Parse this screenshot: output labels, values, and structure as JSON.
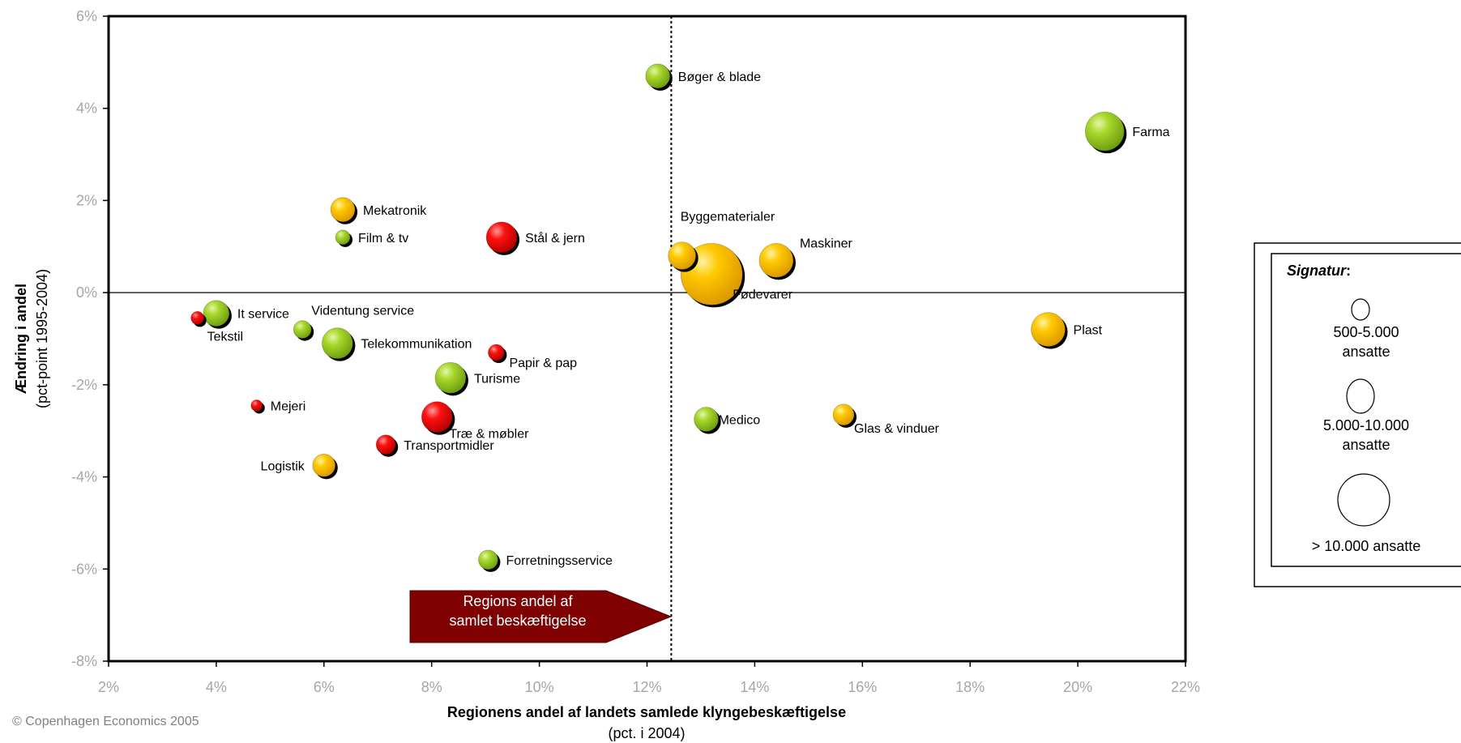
{
  "colors": {
    "green": "#8dc21f",
    "yellow": "#f5b800",
    "red": "#ee0000",
    "arrow_fill": "#7f0000",
    "tick_gray": "#a6a6a6"
  },
  "legend": {
    "title": "Signatur",
    "title_suffix": ":",
    "items": [
      {
        "line1": "500-5.000",
        "line2": "ansatte"
      },
      {
        "line1": "5.000-10.000",
        "line2": "ansatte"
      },
      {
        "line1": "> 10.000 ansatte",
        "line2": ""
      }
    ]
  },
  "annotation": {
    "line1": "Regions andel af",
    "line2": "samlet beskæftigelse"
  },
  "copyright": "© Copenhagen Economics 2005",
  "chart_data": {
    "type": "scatter",
    "subtype": "bubble",
    "xlabel": "Regionens andel af landets samlede klyngebeskæftigelse",
    "xlabel_sub": "(pct. i 2004)",
    "ylabel": "Ændring i andel",
    "ylabel_sub": "(pct-point 1995-2004)",
    "xlim": [
      2,
      22
    ],
    "ylim": [
      -8,
      6
    ],
    "x_ticks": [
      2,
      4,
      6,
      8,
      10,
      12,
      14,
      16,
      18,
      20,
      22
    ],
    "y_ticks": [
      -8,
      -6,
      -4,
      -2,
      0,
      2,
      4,
      6
    ],
    "x_tick_labels": [
      "2%",
      "4%",
      "6%",
      "8%",
      "10%",
      "12%",
      "14%",
      "16%",
      "18%",
      "20%",
      "22%"
    ],
    "y_tick_labels": [
      "-8%",
      "-6%",
      "-4%",
      "-2%",
      "0%",
      "2%",
      "4%",
      "6%"
    ],
    "reference_x": 12.45,
    "reference_y": 0,
    "points": [
      {
        "name": "Bøger & blade",
        "x": 12.2,
        "y": 4.7,
        "color": "green",
        "size": 15
      },
      {
        "name": "Farma",
        "x": 20.5,
        "y": 3.5,
        "color": "green",
        "size": 24
      },
      {
        "name": "Mekatronik",
        "x": 6.35,
        "y": 1.8,
        "color": "yellow",
        "size": 15
      },
      {
        "name": "Film & tv",
        "x": 6.35,
        "y": 1.2,
        "color": "green",
        "size": 9
      },
      {
        "name": "Stål & jern",
        "x": 9.3,
        "y": 1.2,
        "color": "red",
        "size": 19
      },
      {
        "name": "Byggematerialer",
        "x": 12.65,
        "y": 0.8,
        "color": "yellow",
        "size": 17
      },
      {
        "name": "Maskiner",
        "x": 14.4,
        "y": 0.7,
        "color": "yellow",
        "size": 21
      },
      {
        "name": "Fødevarer",
        "x": 13.2,
        "y": 0.4,
        "color": "yellow",
        "size": 38
      },
      {
        "name": "It service",
        "x": 4.0,
        "y": -0.45,
        "color": "green",
        "size": 16
      },
      {
        "name": "Tekstil",
        "x": 3.65,
        "y": -0.55,
        "color": "red",
        "size": 8
      },
      {
        "name": "Videntung service",
        "x": 5.6,
        "y": -0.8,
        "color": "green",
        "size": 11
      },
      {
        "name": "Telekommunikation",
        "x": 6.25,
        "y": -1.1,
        "color": "green",
        "size": 19
      },
      {
        "name": "Papir & pap",
        "x": 9.2,
        "y": -1.3,
        "color": "red",
        "size": 10
      },
      {
        "name": "Plast",
        "x": 19.45,
        "y": -0.8,
        "color": "yellow",
        "size": 21
      },
      {
        "name": "Turisme",
        "x": 8.35,
        "y": -1.85,
        "color": "green",
        "size": 19
      },
      {
        "name": "Mejeri",
        "x": 4.75,
        "y": -2.45,
        "color": "red",
        "size": 7
      },
      {
        "name": "Træ & møbler",
        "x": 8.1,
        "y": -2.7,
        "color": "red",
        "size": 19
      },
      {
        "name": "Medico",
        "x": 13.1,
        "y": -2.75,
        "color": "green",
        "size": 15
      },
      {
        "name": "Glas & vinduer",
        "x": 15.65,
        "y": -2.65,
        "color": "yellow",
        "size": 13
      },
      {
        "name": "Transportmidler",
        "x": 7.15,
        "y": -3.3,
        "color": "red",
        "size": 12
      },
      {
        "name": "Logistik",
        "x": 6.0,
        "y": -3.75,
        "color": "yellow",
        "size": 14
      },
      {
        "name": "Forretningsservice",
        "x": 9.05,
        "y": -5.8,
        "color": "green",
        "size": 12
      }
    ]
  }
}
